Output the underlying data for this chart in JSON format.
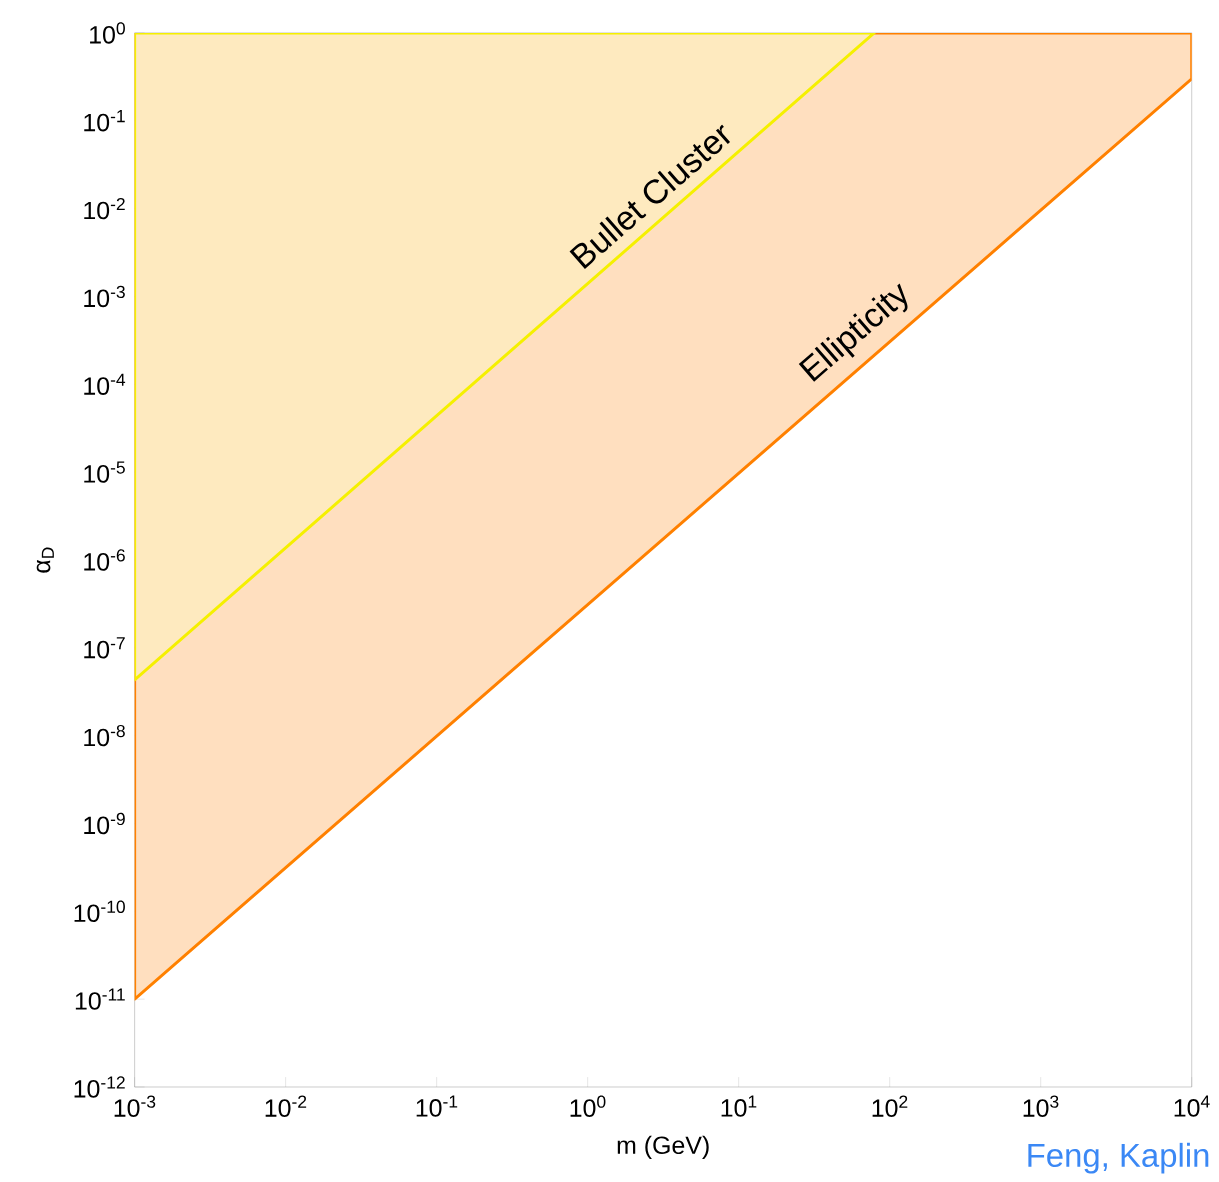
{
  "chart_data": {
    "type": "area",
    "xlabel": "m (GeV)",
    "ylabel": "α$_{D}$",
    "log": "xy",
    "xlim": [
      0.001,
      10000
    ],
    "ylim": [
      1e-12,
      1
    ],
    "xticks": [
      {
        "value": 0.001,
        "label": "10$^{-3}$"
      },
      {
        "value": 0.01,
        "label": "10$^{-2}$"
      },
      {
        "value": 0.1,
        "label": "10$^{-1}$"
      },
      {
        "value": 1,
        "label": "10$^{0}$"
      },
      {
        "value": 10,
        "label": "10$^{1}$"
      },
      {
        "value": 100,
        "label": "10$^{2}$"
      },
      {
        "value": 1000,
        "label": "10$^{3}$"
      },
      {
        "value": 10000,
        "label": "10$^{4}$"
      }
    ],
    "yticks": [
      {
        "value": 1e-12,
        "label": "10$^{-12}$"
      },
      {
        "value": 1e-11,
        "label": "10$^{-11}$"
      },
      {
        "value": 1e-10,
        "label": "10$^{-10}$"
      },
      {
        "value": 1e-09,
        "label": "10$^{-9}$"
      },
      {
        "value": 1e-08,
        "label": "10$^{-8}$"
      },
      {
        "value": 1e-07,
        "label": "10$^{-7}$"
      },
      {
        "value": 1e-06,
        "label": "10$^{-6}$"
      },
      {
        "value": 1e-05,
        "label": "10$^{-5}$"
      },
      {
        "value": 0.0001,
        "label": "10$^{-4}$"
      },
      {
        "value": 0.001,
        "label": "10$^{-3}$"
      },
      {
        "value": 0.01,
        "label": "10$^{-2}$"
      },
      {
        "value": 0.1,
        "label": "10$^{-1}$"
      },
      {
        "value": 1,
        "label": "10$^{0}$"
      }
    ],
    "series": [
      {
        "name": "Ellipticity",
        "color": "#ff8000",
        "x": [
          0.001,
          10000,
          10000,
          0.001
        ],
        "values": [
          1e-11,
          0.3,
          1,
          1
        ]
      },
      {
        "name": "Bullet Cluster",
        "color": "#f5f000",
        "x": [
          0.001,
          79,
          0.001
        ],
        "values": [
          4.3e-08,
          1,
          1
        ]
      }
    ],
    "annotations": [
      "Feng, Kaplin"
    ]
  }
}
